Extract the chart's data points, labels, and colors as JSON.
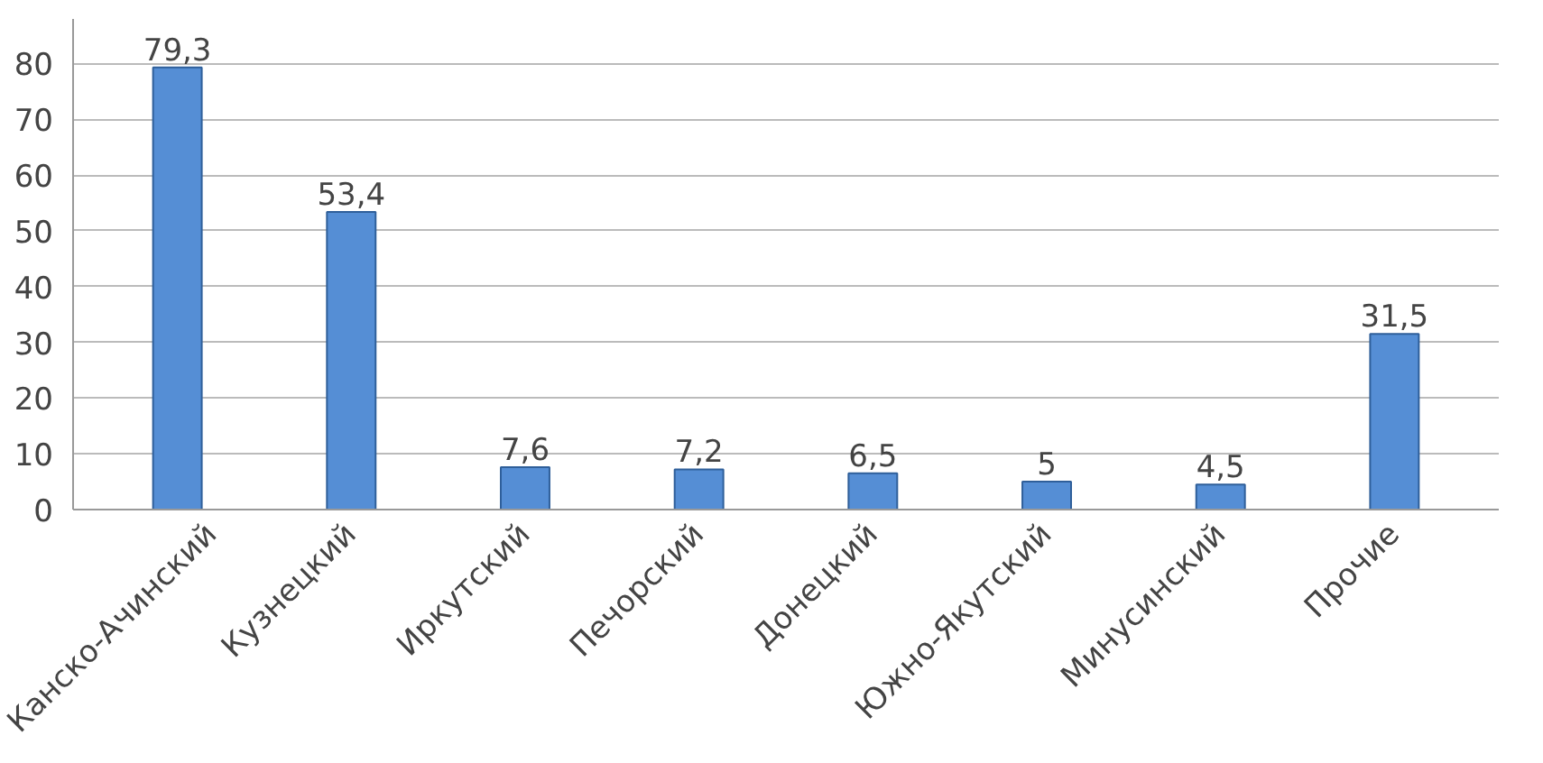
{
  "chart_data": {
    "type": "bar",
    "categories": [
      "Канско-Ачинский",
      "Кузнецкий",
      "Иркутский",
      "Печорский",
      "Донецкий",
      "Южно-Якутский",
      "Минусинский",
      "Прочие"
    ],
    "values": [
      79.3,
      53.4,
      7.6,
      7.2,
      6.5,
      5,
      4.5,
      31.5
    ],
    "value_labels": [
      "79,3",
      "53,4",
      "7,6",
      "7,2",
      "6,5",
      "5",
      "4,5",
      "31,5"
    ],
    "color": "#558ed5",
    "ylim": [
      0,
      88
    ],
    "yticks": [
      0,
      10,
      20,
      30,
      40,
      50,
      60,
      70,
      80
    ],
    "grid": "y"
  }
}
